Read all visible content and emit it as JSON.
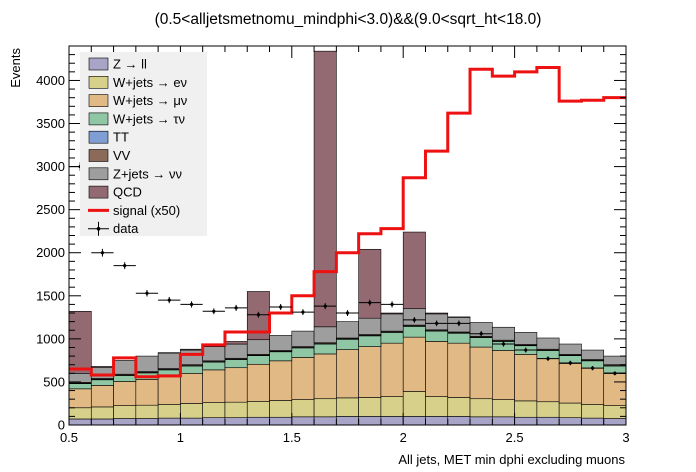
{
  "chart_data": {
    "type": "bar",
    "title": "(0.5<alljetsmetnomu_mindphi<3.0)&&(9.0<sqrt_ht<18.0)",
    "xlabel": "All jets, MET min dphi excluding muons",
    "ylabel": "Events",
    "xlim": [
      0.5,
      3.0
    ],
    "ylim": [
      0,
      4400
    ],
    "x_ticks": [
      0.5,
      1,
      1.5,
      2,
      2.5,
      3
    ],
    "x_tick_labels": [
      "0.5",
      "1",
      "1.5",
      "2",
      "2.5",
      "3"
    ],
    "y_ticks": [
      0,
      500,
      1000,
      1500,
      2000,
      2500,
      3000,
      3500,
      4000
    ],
    "y_tick_labels": [
      "0",
      "500",
      "1000",
      "1500",
      "2000",
      "2500",
      "3000",
      "3500",
      "4000"
    ],
    "bin_edges": [
      0.5,
      0.6,
      0.7,
      0.8,
      0.9,
      1.0,
      1.1,
      1.2,
      1.3,
      1.4,
      1.5,
      1.6,
      1.7,
      1.8,
      1.9,
      2.0,
      2.1,
      2.2,
      2.3,
      2.4,
      2.5,
      2.6,
      2.7,
      2.8,
      2.9,
      3.0
    ],
    "legend_position": "top-left",
    "stack_order": [
      "Z → ll",
      "W+jets → eν",
      "W+jets → μν",
      "W+jets → τν",
      "TT",
      "VV",
      "Z+jets → νν",
      "QCD"
    ],
    "series": [
      {
        "name": "Z → ll",
        "kind": "stack",
        "color": "#a8a4c8",
        "values": [
          70,
          70,
          75,
          75,
          80,
          80,
          85,
          85,
          90,
          90,
          95,
          95,
          100,
          100,
          100,
          100,
          100,
          100,
          95,
          95,
          90,
          90,
          85,
          80,
          75
        ]
      },
      {
        "name": "W+jets → eν",
        "kind": "stack",
        "color": "#d6d08a",
        "values": [
          130,
          140,
          150,
          155,
          160,
          170,
          175,
          180,
          185,
          195,
          200,
          210,
          215,
          220,
          230,
          290,
          230,
          220,
          210,
          200,
          190,
          180,
          170,
          160,
          150
        ]
      },
      {
        "name": "W+jets → μν",
        "kind": "stack",
        "color": "#e0b984",
        "values": [
          220,
          250,
          280,
          300,
          320,
          350,
          380,
          400,
          430,
          460,
          490,
          520,
          560,
          590,
          620,
          630,
          640,
          630,
          600,
          570,
          540,
          500,
          460,
          420,
          380
        ]
      },
      {
        "name": "W+jets → τν",
        "kind": "stack",
        "color": "#8fc6a4",
        "values": [
          60,
          65,
          70,
          75,
          80,
          85,
          90,
          95,
          100,
          105,
          110,
          115,
          120,
          125,
          125,
          125,
          120,
          115,
          110,
          105,
          100,
          95,
          90,
          85,
          80
        ]
      },
      {
        "name": "TT",
        "kind": "stack",
        "color": "#7f9fd4",
        "values": [
          5,
          5,
          5,
          5,
          5,
          5,
          5,
          5,
          5,
          5,
          5,
          5,
          5,
          5,
          5,
          5,
          5,
          5,
          5,
          5,
          5,
          5,
          5,
          5,
          5
        ]
      },
      {
        "name": "VV",
        "kind": "stack",
        "color": "#8b6a5a",
        "values": [
          10,
          10,
          10,
          10,
          10,
          10,
          10,
          10,
          10,
          10,
          10,
          10,
          10,
          10,
          10,
          10,
          10,
          10,
          10,
          10,
          10,
          10,
          10,
          10,
          10
        ]
      },
      {
        "name": "Z+jets → νν",
        "kind": "stack",
        "color": "#9e9e9e",
        "values": [
          105,
          130,
          160,
          180,
          180,
          170,
          165,
          165,
          170,
          175,
          180,
          185,
          190,
          190,
          200,
          190,
          185,
          170,
          160,
          150,
          140,
          130,
          120,
          110,
          100
        ]
      },
      {
        "name": "QCD",
        "kind": "stack",
        "color": "#936a72",
        "values": [
          720,
          10,
          0,
          0,
          5,
          10,
          20,
          30,
          560,
          0,
          0,
          3200,
          0,
          800,
          10,
          890,
          10,
          5,
          0,
          0,
          0,
          0,
          0,
          0,
          0
        ]
      },
      {
        "name": "signal (x50)",
        "kind": "line",
        "color": "#ee1111",
        "values": [
          650,
          580,
          780,
          560,
          570,
          820,
          930,
          1080,
          1080,
          1300,
          1500,
          1780,
          2000,
          2220,
          2280,
          2870,
          3180,
          3620,
          4130,
          4050,
          4100,
          4150,
          3760,
          3770,
          3800,
          3680
        ]
      },
      {
        "name": "data",
        "kind": "points",
        "color": "#000000",
        "x": [
          0.55,
          0.65,
          0.75,
          0.85,
          0.95,
          1.05,
          1.15,
          1.25,
          1.35,
          1.45,
          1.55,
          1.65,
          1.75,
          1.85,
          1.95,
          2.05,
          2.15,
          2.25,
          2.35,
          2.45,
          2.55,
          2.65,
          2.75,
          2.85,
          2.95
        ],
        "values": [
          3000,
          2000,
          1850,
          1530,
          1450,
          1400,
          1320,
          1360,
          1280,
          1370,
          1310,
          1380,
          1300,
          1420,
          1400,
          1220,
          1180,
          1180,
          1060,
          940,
          870,
          770,
          720,
          660,
          600
        ],
        "errors": [
          50,
          45,
          40,
          38,
          36,
          36,
          34,
          35,
          34,
          35,
          34,
          35,
          34,
          36,
          36,
          33,
          33,
          33,
          31,
          30,
          29,
          27,
          26,
          25,
          24
        ]
      }
    ]
  }
}
